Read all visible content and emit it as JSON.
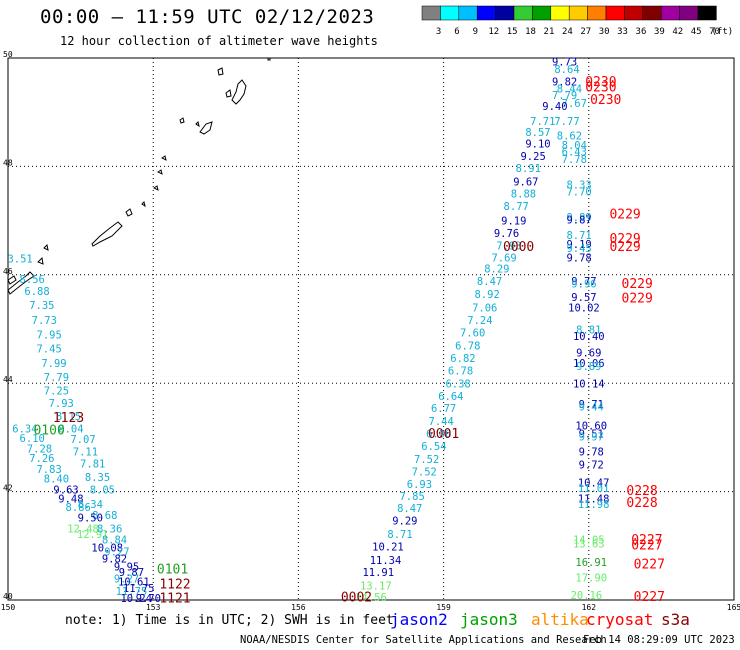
{
  "header": {
    "title": "00:00 – 11:59 UTC 02/12/2023",
    "subtitle": "12 hour collection of altimeter wave heights"
  },
  "colorbar": {
    "labels": [
      "3",
      "6",
      "9",
      "12",
      "15",
      "18",
      "21",
      "24",
      "27",
      "30",
      "33",
      "36",
      "39",
      "42",
      "45",
      "70"
    ],
    "unit": "(ft)",
    "colors": [
      "#808080",
      "#00ffff",
      "#00bfff",
      "#0000ff",
      "#0000a0",
      "#33cc33",
      "#00a000",
      "#ffff00",
      "#ffcc00",
      "#ff8000",
      "#ff0000",
      "#c00000",
      "#800000",
      "#a000a0",
      "#800080",
      "#000000"
    ]
  },
  "footer": {
    "note": "note: 1) Time is in UTC; 2) SWH is in feet",
    "satellites": [
      {
        "name": "jason2",
        "color": "#0000ff"
      },
      {
        "name": "jason3",
        "color": "#00a000"
      },
      {
        "name": "altika",
        "color": "#ff8c00"
      },
      {
        "name": "cryosat",
        "color": "#ff0000"
      },
      {
        "name": "s3a",
        "color": "#8b0000"
      }
    ],
    "credit": "NOAA/NESDIS Center for Satellite Applications and Research",
    "generated": "Feb 14 08:29:09 UTC 2023"
  },
  "chart_data": {
    "type": "scatter",
    "title": "00:00 – 11:59 UTC 02/12/2023",
    "subtitle": "12 hour collection of altimeter wave heights",
    "xlabel": "",
    "ylabel": "",
    "xlim": [
      150,
      165
    ],
    "ylim": [
      40,
      50
    ],
    "x_ticks": [
      "150",
      "153",
      "156",
      "159",
      "162",
      "165"
    ],
    "y_ticks": [
      "40",
      "42",
      "44",
      "46",
      "48",
      "50"
    ],
    "grid": true,
    "legend": "bottom",
    "colors": {
      "light": "#11b0d6",
      "dark": "#0000b0",
      "mid": "#2040ff",
      "green": "#20a020",
      "lgreen": "#66ee66",
      "red": "#ff0000",
      "maroon": "#8b0000"
    },
    "labels": [
      {
        "lon": 150.25,
        "lat": 46.28,
        "text": "3.51",
        "c": "light"
      },
      {
        "lon": 150.5,
        "lat": 45.9,
        "text": "8.56",
        "c": "light"
      },
      {
        "lon": 150.6,
        "lat": 45.68,
        "text": "6.88",
        "c": "light"
      },
      {
        "lon": 150.7,
        "lat": 45.42,
        "text": "7.35",
        "c": "light"
      },
      {
        "lon": 150.75,
        "lat": 45.15,
        "text": "7.73",
        "c": "light"
      },
      {
        "lon": 150.85,
        "lat": 44.88,
        "text": "7.95",
        "c": "light"
      },
      {
        "lon": 150.85,
        "lat": 44.62,
        "text": "7.45",
        "c": "light"
      },
      {
        "lon": 150.95,
        "lat": 44.35,
        "text": "7.99",
        "c": "light"
      },
      {
        "lon": 151.0,
        "lat": 44.1,
        "text": "7.79",
        "c": "light"
      },
      {
        "lon": 151.0,
        "lat": 43.85,
        "text": "7.25",
        "c": "light"
      },
      {
        "lon": 151.1,
        "lat": 43.62,
        "text": "7.93",
        "c": "light"
      },
      {
        "lon": 151.25,
        "lat": 43.38,
        "text": "8.15",
        "c": "light"
      },
      {
        "lon": 151.3,
        "lat": 43.15,
        "text": "8.04",
        "c": "light"
      },
      {
        "lon": 150.35,
        "lat": 43.15,
        "text": "6.34",
        "c": "light"
      },
      {
        "lon": 150.5,
        "lat": 42.97,
        "text": "6.10",
        "c": "light"
      },
      {
        "lon": 150.65,
        "lat": 42.78,
        "text": "7.28",
        "c": "light"
      },
      {
        "lon": 150.7,
        "lat": 42.6,
        "text": "7.26",
        "c": "light"
      },
      {
        "lon": 150.85,
        "lat": 42.4,
        "text": "7.83",
        "c": "light"
      },
      {
        "lon": 151.0,
        "lat": 42.22,
        "text": "8.40",
        "c": "light"
      },
      {
        "lon": 151.2,
        "lat": 42.02,
        "text": "9.63",
        "c": "dark"
      },
      {
        "lon": 151.3,
        "lat": 41.85,
        "text": "9.48",
        "c": "dark"
      },
      {
        "lon": 151.45,
        "lat": 41.7,
        "text": "8.86",
        "c": "light"
      },
      {
        "lon": 151.7,
        "lat": 41.75,
        "text": "8.34",
        "c": "light"
      },
      {
        "lon": 151.55,
        "lat": 42.95,
        "text": "7.07",
        "c": "light"
      },
      {
        "lon": 151.6,
        "lat": 42.72,
        "text": "7.11",
        "c": "light"
      },
      {
        "lon": 151.75,
        "lat": 42.5,
        "text": "7.81",
        "c": "light"
      },
      {
        "lon": 151.85,
        "lat": 42.25,
        "text": "8.35",
        "c": "light"
      },
      {
        "lon": 151.95,
        "lat": 42.02,
        "text": "8.05",
        "c": "light"
      },
      {
        "lon": 152.0,
        "lat": 41.55,
        "text": "8.68",
        "c": "light"
      },
      {
        "lon": 151.7,
        "lat": 41.5,
        "text": "9.50",
        "c": "dark"
      },
      {
        "lon": 151.55,
        "lat": 41.3,
        "text": "12.48",
        "c": "lgreen"
      },
      {
        "lon": 151.75,
        "lat": 41.2,
        "text": "12.91",
        "c": "lgreen"
      },
      {
        "lon": 152.1,
        "lat": 41.3,
        "text": "8.36",
        "c": "light"
      },
      {
        "lon": 152.2,
        "lat": 41.1,
        "text": "8.84",
        "c": "light"
      },
      {
        "lon": 152.05,
        "lat": 40.95,
        "text": "10.08",
        "c": "dark"
      },
      {
        "lon": 152.25,
        "lat": 40.88,
        "text": "9.27",
        "c": "light"
      },
      {
        "lon": 152.2,
        "lat": 40.75,
        "text": "9.82",
        "c": "dark"
      },
      {
        "lon": 152.45,
        "lat": 40.6,
        "text": "9.95",
        "c": "dark"
      },
      {
        "lon": 152.55,
        "lat": 40.5,
        "text": "9.87",
        "c": "dark"
      },
      {
        "lon": 152.6,
        "lat": 40.32,
        "text": "10.61",
        "c": "dark"
      },
      {
        "lon": 152.45,
        "lat": 40.38,
        "text": "9.27",
        "c": "light"
      },
      {
        "lon": 152.7,
        "lat": 40.2,
        "text": "11.75",
        "c": "dark"
      },
      {
        "lon": 152.55,
        "lat": 40.15,
        "text": "11.75",
        "c": "light"
      },
      {
        "lon": 152.65,
        "lat": 40.02,
        "text": "10.24",
        "c": "dark"
      },
      {
        "lon": 152.9,
        "lat": 40.02,
        "text": "9.70",
        "c": "dark"
      },
      {
        "lon": 151.25,
        "lat": 43.35,
        "text": "1123",
        "c": "maroon",
        "time": true
      },
      {
        "lon": 150.85,
        "lat": 43.12,
        "text": "0100",
        "c": "green",
        "time": true
      },
      {
        "lon": 153.4,
        "lat": 40.55,
        "text": "0101",
        "c": "green",
        "time": true
      },
      {
        "lon": 153.45,
        "lat": 40.28,
        "text": "1122",
        "c": "maroon",
        "time": true
      },
      {
        "lon": 153.45,
        "lat": 40.02,
        "text": "1121",
        "c": "maroon",
        "time": true
      },
      {
        "lon": 161.5,
        "lat": 49.92,
        "text": "9.73",
        "c": "dark"
      },
      {
        "lon": 161.55,
        "lat": 49.78,
        "text": "8.64",
        "c": "light"
      },
      {
        "lon": 161.5,
        "lat": 49.55,
        "text": "9.82",
        "c": "dark"
      },
      {
        "lon": 161.6,
        "lat": 49.42,
        "text": "8.44",
        "c": "light"
      },
      {
        "lon": 161.5,
        "lat": 49.3,
        "text": "7.79",
        "c": "light"
      },
      {
        "lon": 161.7,
        "lat": 49.15,
        "text": "7.67",
        "c": "light"
      },
      {
        "lon": 161.3,
        "lat": 49.1,
        "text": "9.40",
        "c": "dark"
      },
      {
        "lon": 161.05,
        "lat": 48.82,
        "text": "7.71",
        "c": "light"
      },
      {
        "lon": 161.55,
        "lat": 48.82,
        "text": "7.77",
        "c": "light"
      },
      {
        "lon": 160.95,
        "lat": 48.62,
        "text": "8.57",
        "c": "light"
      },
      {
        "lon": 161.6,
        "lat": 48.55,
        "text": "8.62",
        "c": "light"
      },
      {
        "lon": 160.95,
        "lat": 48.4,
        "text": "9.10",
        "c": "dark"
      },
      {
        "lon": 161.7,
        "lat": 48.38,
        "text": "8.04",
        "c": "light"
      },
      {
        "lon": 161.7,
        "lat": 48.26,
        "text": "6.43",
        "c": "light"
      },
      {
        "lon": 160.85,
        "lat": 48.17,
        "text": "9.25",
        "c": "dark"
      },
      {
        "lon": 161.7,
        "lat": 48.12,
        "text": "7.78",
        "c": "light"
      },
      {
        "lon": 160.75,
        "lat": 47.95,
        "text": "8.91",
        "c": "light"
      },
      {
        "lon": 160.7,
        "lat": 47.7,
        "text": "9.67",
        "c": "dark"
      },
      {
        "lon": 160.65,
        "lat": 47.48,
        "text": "8.88",
        "c": "light"
      },
      {
        "lon": 161.8,
        "lat": 47.65,
        "text": "8.33",
        "c": "light"
      },
      {
        "lon": 161.8,
        "lat": 47.52,
        "text": "7.70",
        "c": "light"
      },
      {
        "lon": 160.5,
        "lat": 47.25,
        "text": "8.77",
        "c": "light"
      },
      {
        "lon": 160.45,
        "lat": 46.98,
        "text": "9.19",
        "c": "dark"
      },
      {
        "lon": 161.8,
        "lat": 47.05,
        "text": "9.89",
        "c": "light"
      },
      {
        "lon": 161.8,
        "lat": 47.0,
        "text": "9.87",
        "c": "dark"
      },
      {
        "lon": 160.3,
        "lat": 46.75,
        "text": "9.76",
        "c": "dark"
      },
      {
        "lon": 161.8,
        "lat": 46.72,
        "text": "8.71",
        "c": "light"
      },
      {
        "lon": 160.35,
        "lat": 46.52,
        "text": "7.93",
        "c": "light"
      },
      {
        "lon": 161.8,
        "lat": 46.55,
        "text": "9.19",
        "c": "dark"
      },
      {
        "lon": 161.8,
        "lat": 46.48,
        "text": "9.45",
        "c": "light"
      },
      {
        "lon": 160.25,
        "lat": 46.3,
        "text": "7.69",
        "c": "light"
      },
      {
        "lon": 161.8,
        "lat": 46.3,
        "text": "9.78",
        "c": "dark"
      },
      {
        "lon": 160.1,
        "lat": 46.1,
        "text": "8.29",
        "c": "light"
      },
      {
        "lon": 159.95,
        "lat": 45.87,
        "text": "8.47",
        "c": "light"
      },
      {
        "lon": 161.9,
        "lat": 45.87,
        "text": "9.77",
        "c": "dark"
      },
      {
        "lon": 161.9,
        "lat": 45.82,
        "text": "9.96",
        "c": "light"
      },
      {
        "lon": 159.9,
        "lat": 45.63,
        "text": "8.92",
        "c": "light"
      },
      {
        "lon": 161.9,
        "lat": 45.57,
        "text": "9.57",
        "c": "dark"
      },
      {
        "lon": 159.85,
        "lat": 45.38,
        "text": "7.06",
        "c": "light"
      },
      {
        "lon": 161.9,
        "lat": 45.38,
        "text": "10.02",
        "c": "dark"
      },
      {
        "lon": 159.75,
        "lat": 45.15,
        "text": "7.24",
        "c": "light"
      },
      {
        "lon": 159.6,
        "lat": 44.92,
        "text": "7.60",
        "c": "light"
      },
      {
        "lon": 162.0,
        "lat": 44.97,
        "text": "8.81",
        "c": "light"
      },
      {
        "lon": 162.0,
        "lat": 44.85,
        "text": "10.40",
        "c": "dark"
      },
      {
        "lon": 159.5,
        "lat": 44.68,
        "text": "6.78",
        "c": "light"
      },
      {
        "lon": 159.4,
        "lat": 44.45,
        "text": "6.82",
        "c": "light"
      },
      {
        "lon": 162.0,
        "lat": 44.55,
        "text": "9.69",
        "c": "dark"
      },
      {
        "lon": 162.0,
        "lat": 44.35,
        "text": "10.06",
        "c": "dark"
      },
      {
        "lon": 162.0,
        "lat": 44.3,
        "text": "9.89",
        "c": "light"
      },
      {
        "lon": 159.35,
        "lat": 44.22,
        "text": "6.78",
        "c": "light"
      },
      {
        "lon": 159.3,
        "lat": 43.98,
        "text": "6.38",
        "c": "light"
      },
      {
        "lon": 162.0,
        "lat": 43.98,
        "text": "10.14",
        "c": "dark"
      },
      {
        "lon": 159.15,
        "lat": 43.75,
        "text": "6.64",
        "c": "light"
      },
      {
        "lon": 162.05,
        "lat": 43.6,
        "text": "9.71",
        "c": "dark"
      },
      {
        "lon": 162.05,
        "lat": 43.55,
        "text": "9.44",
        "c": "light"
      },
      {
        "lon": 159.0,
        "lat": 43.52,
        "text": "6.77",
        "c": "light"
      },
      {
        "lon": 158.95,
        "lat": 43.28,
        "text": "7.44",
        "c": "light"
      },
      {
        "lon": 162.05,
        "lat": 43.2,
        "text": "10.60",
        "c": "dark"
      },
      {
        "lon": 158.9,
        "lat": 43.05,
        "text": "6.06",
        "c": "light"
      },
      {
        "lon": 162.05,
        "lat": 43.05,
        "text": "9.51",
        "c": "dark"
      },
      {
        "lon": 162.05,
        "lat": 43.0,
        "text": "9.97",
        "c": "light"
      },
      {
        "lon": 158.8,
        "lat": 42.82,
        "text": "6.54",
        "c": "light"
      },
      {
        "lon": 162.05,
        "lat": 42.72,
        "text": "9.78",
        "c": "dark"
      },
      {
        "lon": 158.65,
        "lat": 42.58,
        "text": "7.52",
        "c": "light"
      },
      {
        "lon": 162.05,
        "lat": 42.48,
        "text": "9.72",
        "c": "dark"
      },
      {
        "lon": 158.6,
        "lat": 42.35,
        "text": "7.52",
        "c": "light"
      },
      {
        "lon": 158.5,
        "lat": 42.12,
        "text": "6.93",
        "c": "light"
      },
      {
        "lon": 162.1,
        "lat": 42.15,
        "text": "10.47",
        "c": "dark"
      },
      {
        "lon": 162.1,
        "lat": 42.05,
        "text": "11.01",
        "c": "light"
      },
      {
        "lon": 158.35,
        "lat": 41.9,
        "text": "7.85",
        "c": "light"
      },
      {
        "lon": 162.1,
        "lat": 41.85,
        "text": "11.48",
        "c": "dark"
      },
      {
        "lon": 162.1,
        "lat": 41.75,
        "text": "11.98",
        "c": "light"
      },
      {
        "lon": 158.3,
        "lat": 41.68,
        "text": "8.47",
        "c": "light"
      },
      {
        "lon": 158.2,
        "lat": 41.45,
        "text": "9.29",
        "c": "dark"
      },
      {
        "lon": 158.1,
        "lat": 41.2,
        "text": "8.71",
        "c": "light"
      },
      {
        "lon": 162.0,
        "lat": 41.1,
        "text": "14.05",
        "c": "lgreen"
      },
      {
        "lon": 162.0,
        "lat": 41.02,
        "text": "13.63",
        "c": "lgreen"
      },
      {
        "lon": 157.85,
        "lat": 40.97,
        "text": "10.21",
        "c": "dark"
      },
      {
        "lon": 157.8,
        "lat": 40.72,
        "text": "11.34",
        "c": "dark"
      },
      {
        "lon": 162.05,
        "lat": 40.68,
        "text": "16.91",
        "c": "green"
      },
      {
        "lon": 157.65,
        "lat": 40.5,
        "text": "11.91",
        "c": "dark"
      },
      {
        "lon": 162.05,
        "lat": 40.4,
        "text": "17.90",
        "c": "lgreen"
      },
      {
        "lon": 157.6,
        "lat": 40.25,
        "text": "13.17",
        "c": "lgreen"
      },
      {
        "lon": 157.5,
        "lat": 40.04,
        "text": "14.56",
        "c": "lgreen"
      },
      {
        "lon": 161.95,
        "lat": 40.07,
        "text": "20.16",
        "c": "lgreen"
      },
      {
        "lon": 162.25,
        "lat": 49.55,
        "text": "0230",
        "c": "red",
        "time": true
      },
      {
        "lon": 162.25,
        "lat": 49.45,
        "text": "0230",
        "c": "red",
        "time": true
      },
      {
        "lon": 162.35,
        "lat": 49.22,
        "text": "0230",
        "c": "red",
        "time": true
      },
      {
        "lon": 162.75,
        "lat": 47.1,
        "text": "0229",
        "c": "red",
        "time": true
      },
      {
        "lon": 162.75,
        "lat": 46.65,
        "text": "0229",
        "c": "red",
        "time": true
      },
      {
        "lon": 162.75,
        "lat": 46.5,
        "text": "0229",
        "c": "red",
        "time": true
      },
      {
        "lon": 160.55,
        "lat": 46.5,
        "text": "0000",
        "c": "maroon",
        "time": true
      },
      {
        "lon": 163.0,
        "lat": 45.82,
        "text": "0229",
        "c": "red",
        "time": true
      },
      {
        "lon": 163.0,
        "lat": 45.55,
        "text": "0229",
        "c": "red",
        "time": true
      },
      {
        "lon": 159.0,
        "lat": 43.05,
        "text": "0001",
        "c": "maroon",
        "time": true
      },
      {
        "lon": 163.1,
        "lat": 42.0,
        "text": "0228",
        "c": "red",
        "time": true
      },
      {
        "lon": 163.1,
        "lat": 41.78,
        "text": "0228",
        "c": "red",
        "time": true
      },
      {
        "lon": 163.2,
        "lat": 41.1,
        "text": "0227",
        "c": "red",
        "time": true
      },
      {
        "lon": 163.2,
        "lat": 41.0,
        "text": "0227",
        "c": "red",
        "time": true
      },
      {
        "lon": 163.25,
        "lat": 40.65,
        "text": "0227",
        "c": "red",
        "time": true
      },
      {
        "lon": 163.25,
        "lat": 40.05,
        "text": "0227",
        "c": "red",
        "time": true
      },
      {
        "lon": 157.2,
        "lat": 40.04,
        "text": "0002",
        "c": "maroon",
        "time": true
      }
    ]
  }
}
